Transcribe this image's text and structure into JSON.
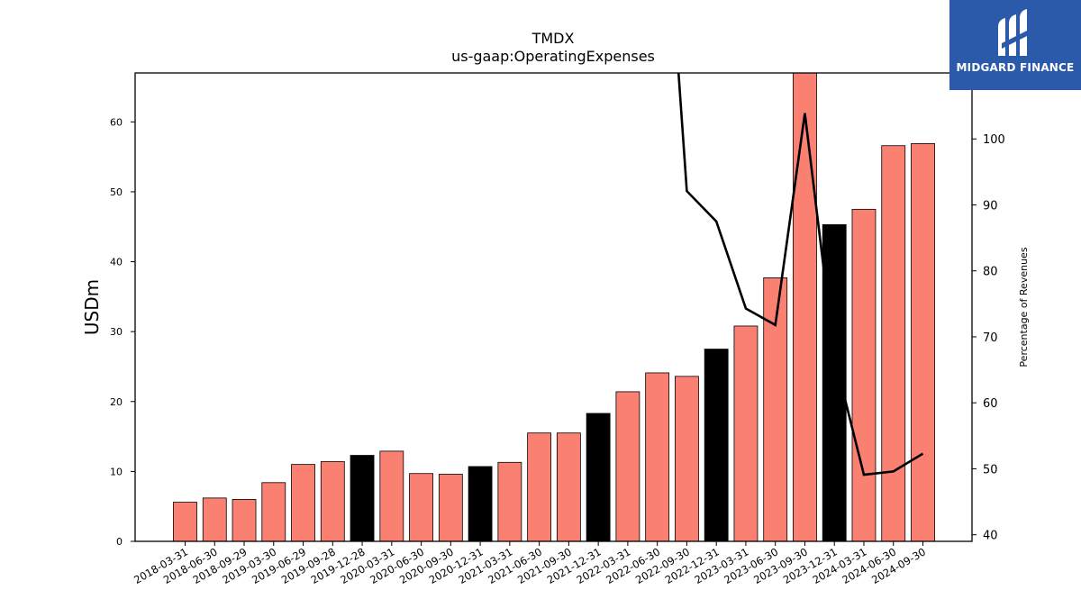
{
  "chart_data": {
    "type": "bar",
    "title": "TMDX",
    "subtitle": "us-gaap:OperatingExpenses",
    "ylabel": "USDm",
    "y2label": "Percentage of Revenues",
    "ylim": [
      0,
      67
    ],
    "y2lim": [
      39,
      110
    ],
    "yticks": [
      0,
      10,
      20,
      30,
      40,
      50,
      60
    ],
    "y2ticks": [
      40,
      50,
      60,
      70,
      80,
      90,
      100
    ],
    "categories": [
      "2018-03-31",
      "2018-06-30",
      "2018-09-29",
      "2019-03-30",
      "2019-06-29",
      "2019-09-28",
      "2019-12-28",
      "2020-03-31",
      "2020-06-30",
      "2020-09-30",
      "2020-12-31",
      "2021-03-31",
      "2021-06-30",
      "2021-09-30",
      "2021-12-31",
      "2022-03-31",
      "2022-06-30",
      "2022-09-30",
      "2022-12-31",
      "2023-03-31",
      "2023-06-30",
      "2023-09-30",
      "2023-12-31",
      "2024-03-31",
      "2024-06-30",
      "2024-09-30"
    ],
    "values": [
      5.6,
      6.2,
      6.0,
      8.4,
      11.0,
      11.4,
      12.3,
      12.9,
      9.7,
      9.6,
      10.7,
      11.3,
      15.5,
      15.5,
      18.3,
      21.4,
      24.1,
      23.6,
      27.5,
      30.8,
      37.7,
      67.0,
      45.3,
      47.5,
      56.6,
      56.9
    ],
    "highlight": [
      false,
      false,
      false,
      false,
      false,
      false,
      true,
      false,
      false,
      false,
      true,
      false,
      false,
      false,
      true,
      false,
      false,
      false,
      true,
      false,
      false,
      false,
      true,
      false,
      false,
      false
    ],
    "line_series": {
      "name": "Percentage of Revenues",
      "values": [
        null,
        null,
        null,
        null,
        null,
        null,
        null,
        null,
        null,
        null,
        null,
        null,
        null,
        null,
        null,
        null,
        null,
        92.1,
        87.5,
        74.3,
        71.8,
        103.9,
        67.0,
        49.1,
        49.6,
        52.3
      ]
    },
    "line_start": {
      "x": 16.25,
      "y": 140
    },
    "colors": {
      "bar": "#fa8072",
      "highlight": "#000000",
      "line": "#000000",
      "edge": "#000000"
    }
  },
  "logo": {
    "text": "MIDGARD FINANCE"
  }
}
